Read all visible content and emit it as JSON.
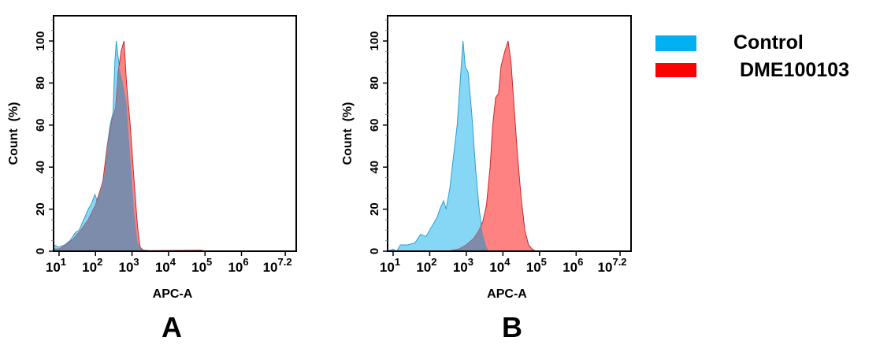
{
  "colors": {
    "control_fill": "#86d7f6",
    "control_stroke": "#2b9fd0",
    "sample_fill": "#ff8282",
    "sample_stroke": "#c42a2a",
    "overlap_fill": "#7d8caa",
    "legend_control": "#00b0f0",
    "legend_sample": "#ff0000"
  },
  "legend": {
    "position": "right",
    "items": [
      {
        "label": "Control",
        "color": "#00b0f0"
      },
      {
        "label": "DME100103",
        "color": "#ff0000"
      }
    ]
  },
  "chart_data": [
    {
      "type": "area",
      "panel_label": "A",
      "xlabel": "APC-A",
      "ylabel": "Count  (%)",
      "xscale": "log10",
      "xlim_log10": [
        0.85,
        7.5
      ],
      "ylim": [
        0,
        112
      ],
      "grid": false,
      "x_ticks": [
        {
          "log10": 1,
          "base": "10",
          "exp": "1"
        },
        {
          "log10": 2,
          "base": "10",
          "exp": "2"
        },
        {
          "log10": 3,
          "base": "10",
          "exp": "3"
        },
        {
          "log10": 4,
          "base": "10",
          "exp": "4"
        },
        {
          "log10": 5,
          "base": "10",
          "exp": "5"
        },
        {
          "log10": 6,
          "base": "10",
          "exp": "6"
        },
        {
          "log10": 7.2,
          "base": "10",
          "exp": "7.2"
        }
      ],
      "y_ticks": [
        "0",
        "20",
        "40",
        "60",
        "80",
        "100"
      ],
      "series": [
        {
          "name": "Control",
          "x_log10": [
            0.85,
            1.0,
            1.15,
            1.3,
            1.45,
            1.55,
            1.7,
            1.8,
            1.9,
            1.98,
            2.05,
            2.15,
            2.25,
            2.32,
            2.4,
            2.48,
            2.53,
            2.57,
            2.62,
            2.68,
            2.75,
            2.85,
            2.95,
            3.05,
            3.15,
            3.25,
            3.4,
            7.5
          ],
          "y": [
            3,
            2,
            3,
            5,
            9,
            10,
            16,
            20,
            23,
            27,
            24,
            30,
            37,
            50,
            60,
            66,
            90,
            100,
            92,
            85,
            80,
            70,
            45,
            20,
            4,
            1,
            0,
            0
          ]
        },
        {
          "name": "DME100103",
          "x_log10": [
            0.85,
            1.0,
            1.2,
            1.4,
            1.6,
            1.8,
            2.0,
            2.2,
            2.32,
            2.45,
            2.55,
            2.62,
            2.7,
            2.78,
            2.85,
            2.95,
            3.05,
            3.15,
            3.22,
            3.3,
            3.5,
            4.9,
            5.0,
            7.5
          ],
          "y": [
            1,
            1,
            3,
            6,
            10,
            15,
            22,
            33,
            50,
            62,
            68,
            85,
            95,
            100,
            80,
            60,
            35,
            12,
            2,
            0.5,
            0.3,
            0.5,
            0,
            0
          ]
        }
      ]
    },
    {
      "type": "area",
      "panel_label": "B",
      "xlabel": "APC-A",
      "ylabel": "Count  (%)",
      "xscale": "log10",
      "xlim_log10": [
        0.85,
        7.5
      ],
      "ylim": [
        0,
        112
      ],
      "grid": false,
      "x_ticks": [
        {
          "log10": 1,
          "base": "10",
          "exp": "1"
        },
        {
          "log10": 2,
          "base": "10",
          "exp": "2"
        },
        {
          "log10": 3,
          "base": "10",
          "exp": "3"
        },
        {
          "log10": 4,
          "base": "10",
          "exp": "4"
        },
        {
          "log10": 5,
          "base": "10",
          "exp": "5"
        },
        {
          "log10": 6,
          "base": "10",
          "exp": "6"
        },
        {
          "log10": 7.2,
          "base": "10",
          "exp": "7.2"
        }
      ],
      "y_ticks": [
        "0",
        "20",
        "40",
        "60",
        "80",
        "100"
      ],
      "series": [
        {
          "name": "Control",
          "x_log10": [
            0.85,
            1.0,
            1.1,
            1.2,
            1.4,
            1.6,
            1.75,
            1.9,
            2.0,
            2.1,
            2.2,
            2.3,
            2.38,
            2.45,
            2.55,
            2.65,
            2.75,
            2.85,
            2.91,
            2.97,
            3.05,
            3.15,
            3.25,
            3.35,
            3.45,
            3.55,
            3.62,
            7.5
          ],
          "y": [
            0,
            1,
            0,
            3,
            3,
            4,
            8,
            7,
            10,
            13,
            16,
            21,
            24,
            20,
            30,
            45,
            60,
            85,
            100,
            88,
            85,
            65,
            40,
            20,
            8,
            2,
            0,
            0
          ]
        },
        {
          "name": "DME100103",
          "x_log10": [
            0.85,
            2.5,
            2.8,
            3.0,
            3.2,
            3.35,
            3.45,
            3.55,
            3.65,
            3.72,
            3.8,
            3.88,
            3.95,
            4.05,
            4.14,
            4.22,
            4.3,
            4.4,
            4.5,
            4.6,
            4.7,
            4.8,
            4.9,
            7.5
          ],
          "y": [
            0,
            0,
            1,
            3,
            6,
            10,
            14,
            22,
            40,
            60,
            73,
            75,
            88,
            95,
            100,
            90,
            70,
            45,
            25,
            10,
            3,
            1,
            0,
            0
          ]
        }
      ]
    }
  ]
}
